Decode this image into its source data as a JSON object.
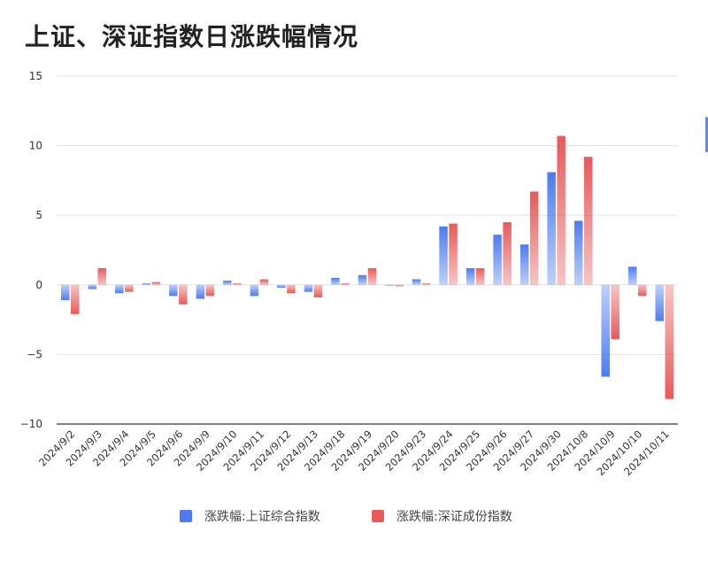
{
  "chart_data": {
    "type": "bar",
    "title": "上证、深证指数日涨跌幅情况",
    "categories": [
      "2024/9/2",
      "2024/9/3",
      "2024/9/4",
      "2024/9/5",
      "2024/9/6",
      "2024/9/9",
      "2024/9/10",
      "2024/9/11",
      "2024/9/12",
      "2024/9/13",
      "2024/9/18",
      "2024/9/19",
      "2024/9/20",
      "2024/9/23",
      "2024/9/24",
      "2024/9/25",
      "2024/9/26",
      "2024/9/27",
      "2024/9/30",
      "2024/10/8",
      "2024/10/9",
      "2024/10/10",
      "2024/10/11"
    ],
    "series": [
      {
        "name": "涨跌幅:上证综合指数",
        "color": "#4a7cf0",
        "values": [
          -1.1,
          -0.3,
          -0.6,
          0.1,
          -0.8,
          -1.0,
          0.3,
          -0.8,
          -0.2,
          -0.5,
          0.5,
          0.7,
          0.0,
          0.4,
          4.2,
          1.2,
          3.6,
          2.9,
          8.1,
          4.6,
          -6.6,
          1.3,
          -2.6
        ]
      },
      {
        "name": "涨跌幅:深证成份指数",
        "color": "#e85a5a",
        "values": [
          -2.1,
          1.2,
          -0.5,
          0.2,
          -1.4,
          -0.8,
          0.1,
          0.4,
          -0.6,
          -0.9,
          0.1,
          1.2,
          -0.1,
          0.1,
          4.4,
          1.2,
          4.5,
          6.7,
          10.7,
          9.2,
          -3.9,
          -0.8,
          -8.2
        ]
      }
    ],
    "yticks": [
      15,
      10,
      5,
      0,
      -5,
      -10
    ],
    "ytick_labels": [
      "15",
      "10",
      "5",
      "0",
      "−5",
      "−10"
    ],
    "ylim": [
      -10,
      15
    ],
    "xlabel": "",
    "ylabel": "",
    "grid": true,
    "legend_position": "bottom-center"
  }
}
